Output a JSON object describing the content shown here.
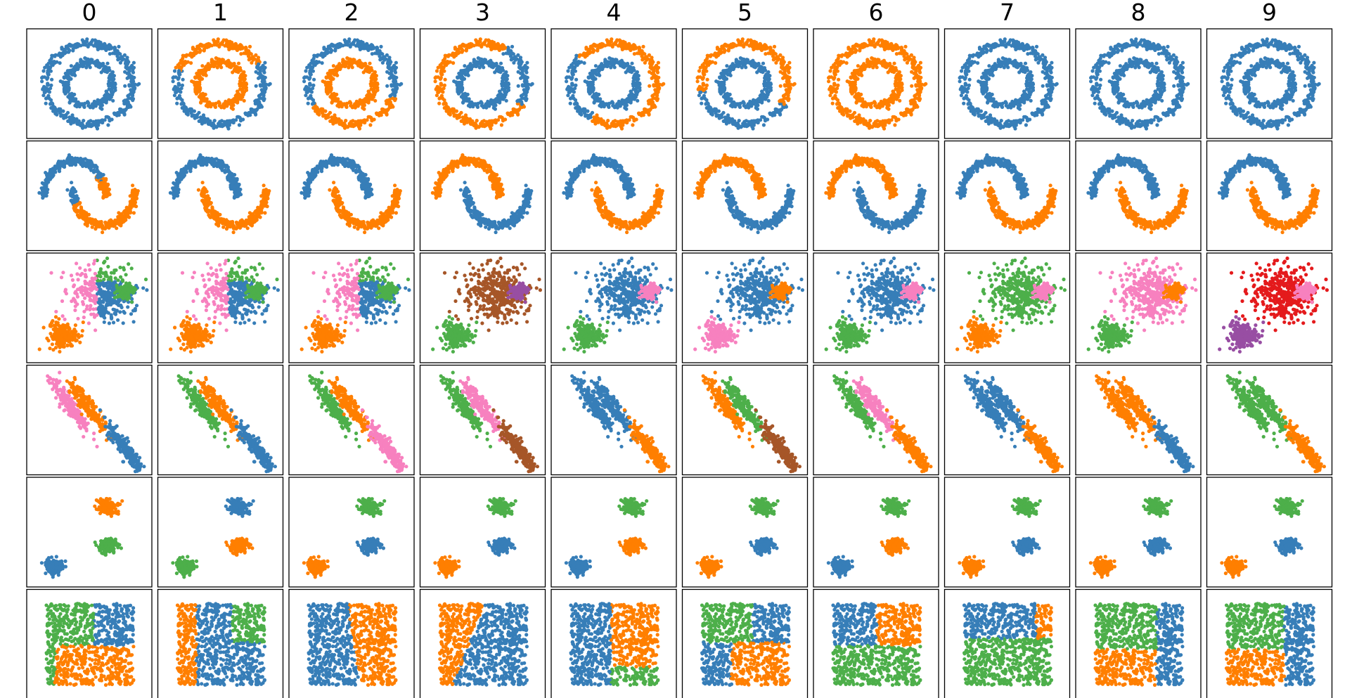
{
  "chart_data": {
    "type": "scatter",
    "title": "",
    "layout": "small-multiples grid, 6 dataset rows x 10 run columns, no axes or ticks",
    "columns": [
      "0",
      "1",
      "2",
      "3",
      "4",
      "5",
      "6",
      "7",
      "8",
      "9"
    ],
    "colors": {
      "blue": "#377eb8",
      "orange": "#ff7f00",
      "green": "#4daf4a",
      "pink": "#f781bf",
      "brown": "#a65628",
      "purple": "#984ea3",
      "red": "#e41a1c"
    },
    "rows": [
      {
        "dataset": "noisy concentric circles",
        "cluster_colors": [
          [
            "blue"
          ],
          [
            "blue",
            "orange"
          ],
          [
            "blue",
            "orange"
          ],
          [
            "orange",
            "blue"
          ],
          [
            "orange",
            "blue"
          ],
          [
            "orange",
            "blue"
          ],
          [
            "blue",
            "orange"
          ],
          [
            "orange",
            "blue"
          ],
          [
            "orange",
            "blue"
          ],
          [
            "orange",
            "blue"
          ]
        ]
      },
      {
        "dataset": "noisy two moons",
        "cluster_colors": [
          [
            "blue",
            "orange"
          ],
          [
            "blue",
            "orange"
          ],
          [
            "blue",
            "orange"
          ],
          [
            "orange",
            "blue"
          ],
          [
            "blue",
            "orange"
          ],
          [
            "orange",
            "blue"
          ],
          [
            "orange",
            "blue"
          ],
          [
            "blue",
            "orange"
          ],
          [
            "blue",
            "orange"
          ],
          [
            "blue",
            "orange"
          ]
        ]
      },
      {
        "dataset": "blobs with varied variances",
        "cluster_colors": [
          [
            "blue",
            "orange",
            "green",
            "pink"
          ],
          [
            "blue",
            "orange",
            "green",
            "pink"
          ],
          [
            "blue",
            "orange",
            "green",
            "pink"
          ],
          [
            "brown",
            "green",
            "purple"
          ],
          [
            "blue",
            "green",
            "pink"
          ],
          [
            "blue",
            "pink",
            "orange"
          ],
          [
            "blue",
            "green",
            "pink"
          ],
          [
            "green",
            "orange",
            "pink"
          ],
          [
            "pink",
            "green",
            "orange"
          ],
          [
            "red",
            "purple",
            "pink"
          ]
        ]
      },
      {
        "dataset": "anisotropic blobs",
        "cluster_colors": [
          [
            "pink",
            "orange",
            "blue"
          ],
          [
            "green",
            "orange",
            "blue"
          ],
          [
            "green",
            "orange",
            "pink"
          ],
          [
            "green",
            "pink",
            "brown"
          ],
          [
            "blue",
            "blue",
            "orange"
          ],
          [
            "orange",
            "green",
            "brown"
          ],
          [
            "green",
            "pink",
            "orange"
          ],
          [
            "blue",
            "blue",
            "orange"
          ],
          [
            "orange",
            "orange",
            "blue"
          ],
          [
            "green",
            "green",
            "orange"
          ]
        ]
      },
      {
        "dataset": "three well-separated blobs",
        "cluster_colors": [
          [
            "blue",
            "green",
            "orange"
          ],
          [
            "green",
            "orange",
            "blue"
          ],
          [
            "orange",
            "blue",
            "green"
          ],
          [
            "orange",
            "blue",
            "green"
          ],
          [
            "blue",
            "orange",
            "green"
          ],
          [
            "orange",
            "blue",
            "green"
          ],
          [
            "blue",
            "orange",
            "green"
          ],
          [
            "orange",
            "blue",
            "green"
          ],
          [
            "orange",
            "blue",
            "green"
          ],
          [
            "orange",
            "blue",
            "green"
          ]
        ]
      },
      {
        "dataset": "uniform random square",
        "cluster_colors": [
          [
            "green",
            "blue",
            "orange"
          ],
          [
            "orange",
            "blue",
            "green"
          ],
          [
            "blue",
            "orange"
          ],
          [
            "orange",
            "blue"
          ],
          [
            "blue",
            "orange",
            "green"
          ],
          [
            "green",
            "blue",
            "orange"
          ],
          [
            "blue",
            "orange",
            "green"
          ],
          [
            "blue",
            "orange",
            "green"
          ],
          [
            "green",
            "orange",
            "blue"
          ],
          [
            "green",
            "orange",
            "blue"
          ]
        ]
      }
    ]
  }
}
